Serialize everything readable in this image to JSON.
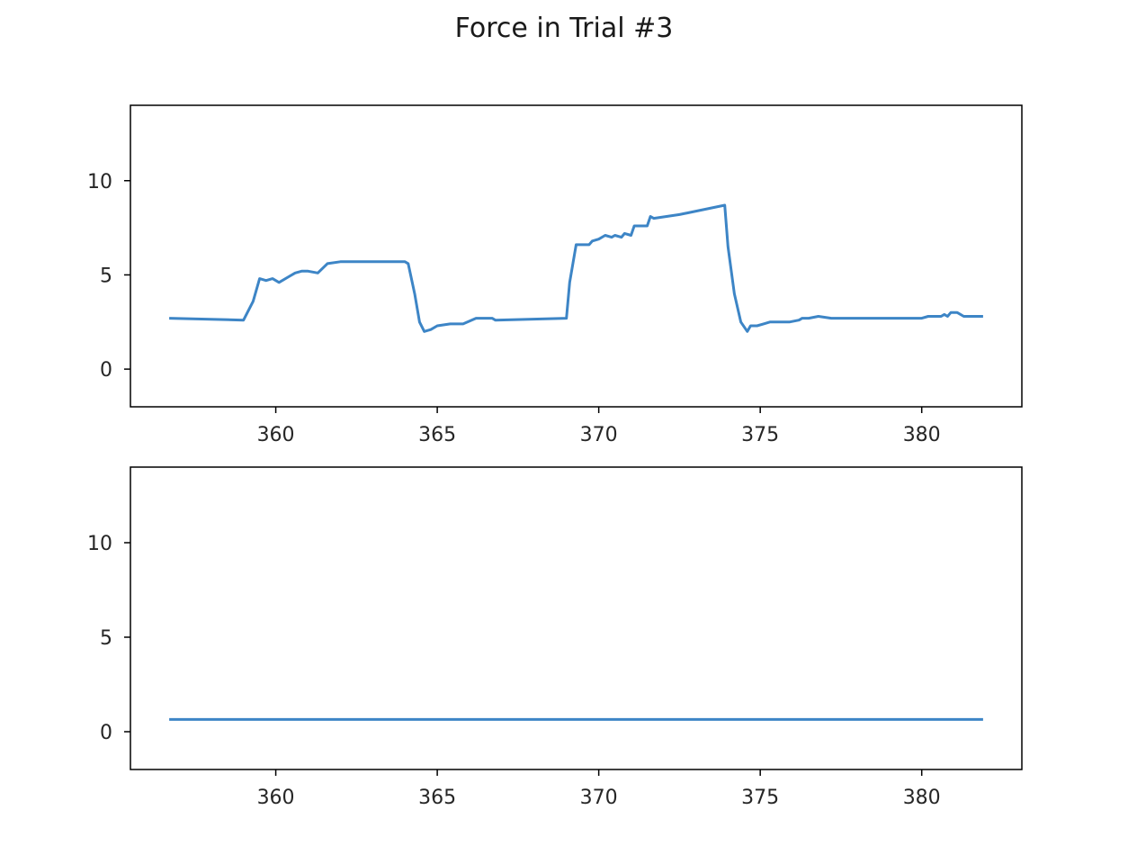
{
  "title": "Force in Trial #3",
  "chart_data": [
    {
      "type": "line",
      "xlim": [
        355.5,
        383.1
      ],
      "ylim": [
        -2,
        14
      ],
      "xticks": [
        360,
        365,
        370,
        375,
        380
      ],
      "yticks": [
        0,
        5,
        10
      ],
      "grid": false,
      "color": "#3d85c6",
      "series": [
        {
          "x": [
            356.7,
            359.0,
            359.3,
            359.5,
            359.7,
            359.9,
            360.1,
            360.4,
            360.6,
            360.8,
            361.0,
            361.3,
            361.6,
            362.0,
            363.0,
            363.8,
            364.0,
            364.1,
            364.3,
            364.45,
            364.6,
            364.8,
            365.0,
            365.4,
            365.6,
            365.8,
            366.2,
            366.7,
            366.8,
            369.0,
            369.1,
            369.3,
            369.7,
            369.8,
            370.0,
            370.2,
            370.4,
            370.5,
            370.7,
            370.8,
            371.0,
            371.1,
            371.3,
            371.5,
            371.6,
            371.7,
            372.5,
            373.9,
            374.0,
            374.2,
            374.4,
            374.6,
            374.7,
            374.9,
            375.1,
            375.3,
            375.5,
            375.7,
            375.9,
            376.2,
            376.3,
            376.5,
            376.8,
            377.2,
            377.8,
            378.4,
            378.5,
            378.8,
            379.1,
            379.5,
            379.8,
            380.0,
            380.2,
            380.5,
            380.6,
            380.7,
            380.8,
            380.9,
            381.1,
            381.3,
            381.5,
            381.6,
            381.9
          ],
          "y": [
            2.7,
            2.6,
            3.6,
            4.8,
            4.7,
            4.8,
            4.6,
            4.9,
            5.1,
            5.2,
            5.2,
            5.1,
            5.6,
            5.7,
            5.7,
            5.7,
            5.7,
            5.6,
            4.0,
            2.5,
            2.0,
            2.1,
            2.3,
            2.4,
            2.4,
            2.4,
            2.7,
            2.7,
            2.6,
            2.7,
            4.6,
            6.6,
            6.6,
            6.8,
            6.9,
            7.1,
            7.0,
            7.1,
            7.0,
            7.2,
            7.1,
            7.6,
            7.6,
            7.6,
            8.1,
            8.0,
            8.2,
            8.7,
            6.5,
            4.0,
            2.5,
            2.0,
            2.3,
            2.3,
            2.4,
            2.5,
            2.5,
            2.5,
            2.5,
            2.6,
            2.7,
            2.7,
            2.8,
            2.7,
            2.7,
            2.7,
            2.7,
            2.7,
            2.7,
            2.7,
            2.7,
            2.7,
            2.8,
            2.8,
            2.8,
            2.9,
            2.8,
            3.0,
            3.0,
            2.8,
            2.8,
            2.8,
            2.8
          ]
        }
      ]
    },
    {
      "type": "line",
      "xlim": [
        355.5,
        383.1
      ],
      "ylim": [
        -2,
        14
      ],
      "xticks": [
        360,
        365,
        370,
        375,
        380
      ],
      "yticks": [
        0,
        5,
        10
      ],
      "grid": false,
      "color": "#3d85c6",
      "series": [
        {
          "x": [
            356.7,
            381.9
          ],
          "y": [
            0.65,
            0.65
          ]
        }
      ]
    }
  ]
}
